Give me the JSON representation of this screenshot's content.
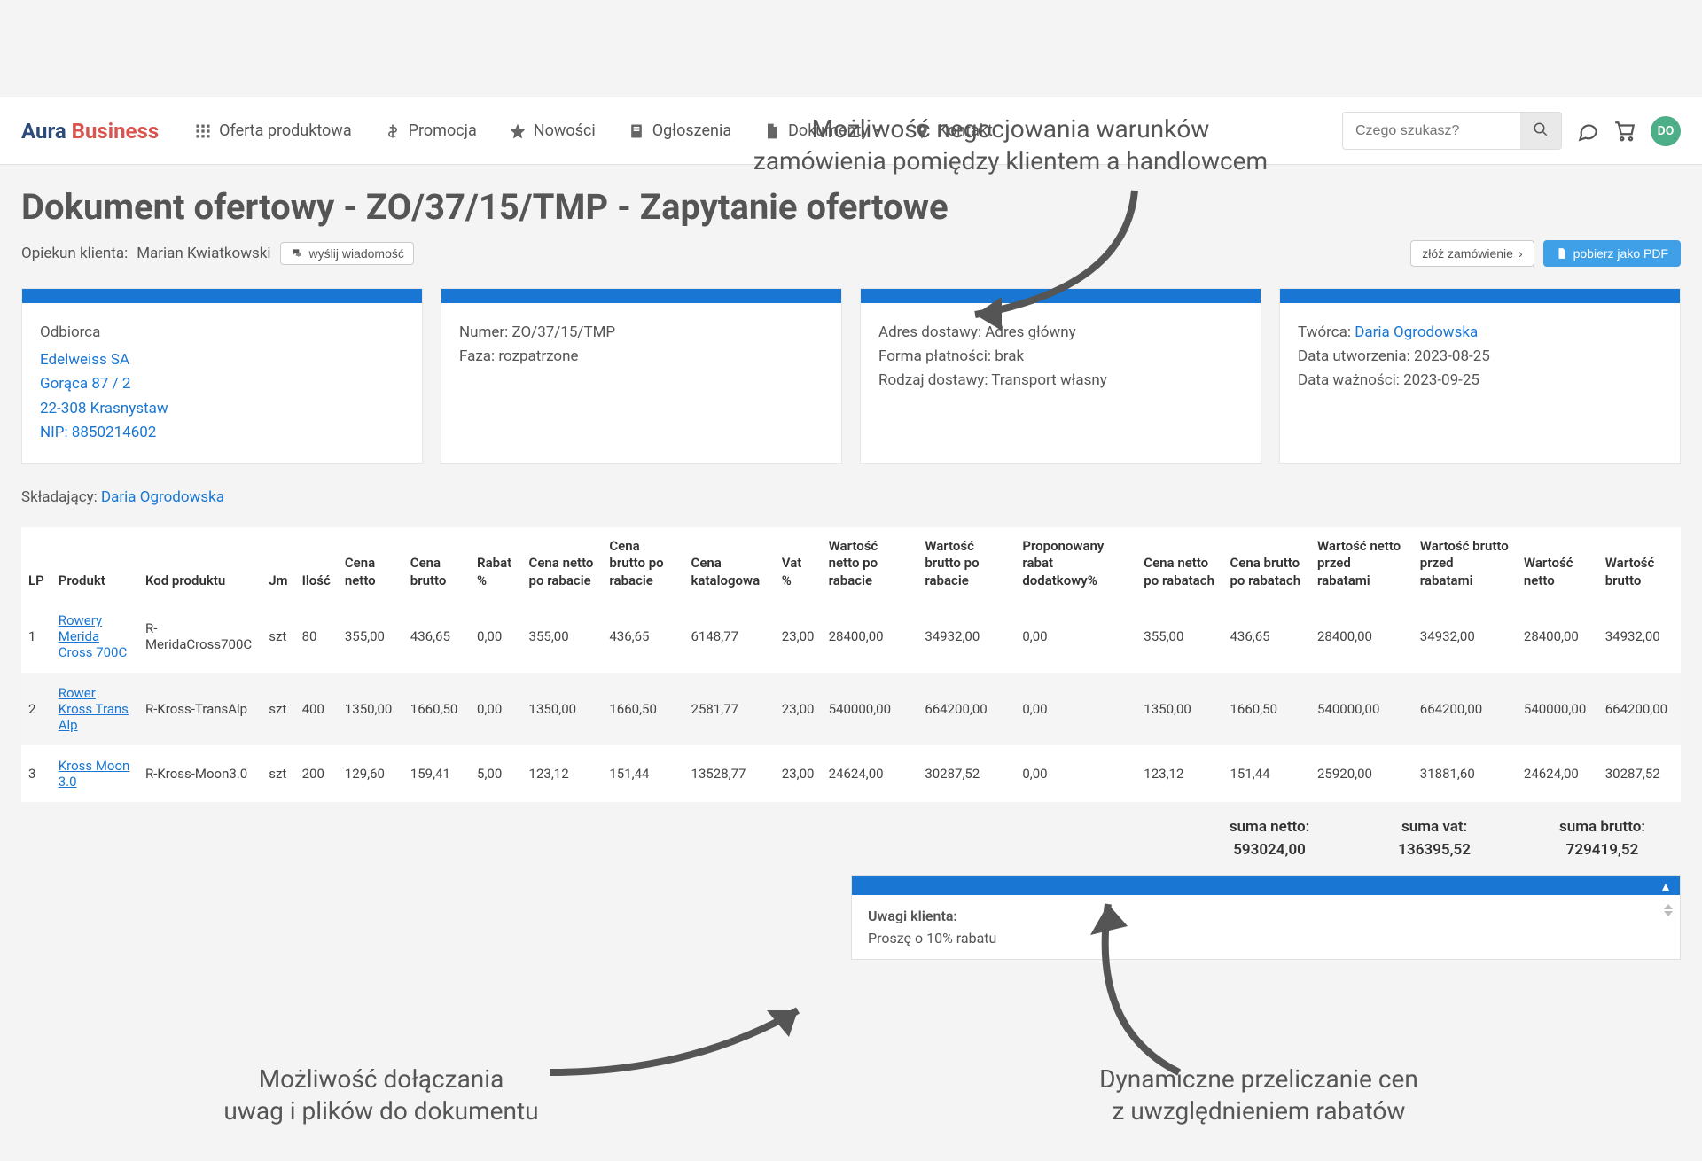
{
  "annotations": {
    "top": "Możliwość negocjowania warunków\nzamówienia pomiędzy klientem a handlowcem",
    "bottom_left": "Możliwość dołączania\nuwag i plików do dokumentu",
    "bottom_right": "Dynamiczne przeliczanie cen\nz uwzględnieniem rabatów"
  },
  "brand": {
    "part1": "Aura",
    "part2": "Business"
  },
  "nav": {
    "offer": "Oferta produktowa",
    "promo": "Promocja",
    "news": "Nowości",
    "ads": "Ogłoszenia",
    "docs": "Dokumenty",
    "contact": "Kontakt"
  },
  "search": {
    "placeholder": "Czego szukasz?"
  },
  "avatar_initials": "DO",
  "page_title": "Dokument ofertowy - ZO/37/15/TMP - Zapytanie ofertowe",
  "owner_label": "Opiekun klienta:",
  "owner_name": "Marian Kwiatkowski",
  "msg_btn": "wyślij wiadomość",
  "order_btn": "złóż zamówienie",
  "pdf_btn": "pobierz jako PDF",
  "cards": {
    "recipient": {
      "label": "Odbiorca",
      "name": "Edelweiss SA",
      "addr1": "Gorąca 87 / 2",
      "addr2": "22-308 Krasnystaw",
      "nip": "NIP: 8850214602"
    },
    "doc": {
      "number": "Numer: ZO/37/15/TMP",
      "phase": "Faza: rozpatrzone"
    },
    "delivery": {
      "addr": "Adres dostawy: Adres główny",
      "payment": "Forma płatności: brak",
      "type": "Rodzaj dostawy: Transport własny"
    },
    "meta": {
      "creator_label": "Twórca:",
      "creator": "Daria Ogrodowska",
      "created": "Data utworzenia: 2023-08-25",
      "valid": "Data ważności: 2023-09-25"
    }
  },
  "submitter_label": "Składający:",
  "submitter": "Daria Ogrodowska",
  "columns": {
    "lp": "LP",
    "product": "Produkt",
    "code": "Kod produktu",
    "jm": "Jm",
    "qty": "Ilość",
    "net": "Cena netto",
    "gross": "Cena brutto",
    "discount": "Rabat %",
    "net_after": "Cena netto po rabacie",
    "gross_after": "Cena brutto po rabacie",
    "catalog": "Cena katalogowa",
    "vat": "Vat %",
    "val_net_after": "Wartość netto po rabacie",
    "val_gross_after": "Wartość brutto po rabacie",
    "prop_discount": "Proponowany rabat dodatkowy%",
    "net_after_all": "Cena netto po rabatach",
    "gross_after_all": "Cena brutto po rabatach",
    "val_net_before": "Wartość netto przed rabatami",
    "val_gross_before": "Wartość brutto przed rabatami",
    "val_net": "Wartość netto",
    "val_gross": "Wartość brutto"
  },
  "rows": [
    {
      "lp": "1",
      "product": "Rowery Merida Cross 700C",
      "code": "R-MeridaCross700C",
      "jm": "szt",
      "qty": "80",
      "net": "355,00",
      "gross": "436,65",
      "discount": "0,00",
      "net_after": "355,00",
      "gross_after": "436,65",
      "catalog": "6148,77",
      "vat": "23,00",
      "val_net_after": "28400,00",
      "val_gross_after": "34932,00",
      "prop_discount": "0,00",
      "net_after_all": "355,00",
      "gross_after_all": "436,65",
      "val_net_before": "28400,00",
      "val_gross_before": "34932,00",
      "val_net": "28400,00",
      "val_gross": "34932,00"
    },
    {
      "lp": "2",
      "product": "Rower Kross Trans Alp",
      "code": "R-Kross-TransAlp",
      "jm": "szt",
      "qty": "400",
      "net": "1350,00",
      "gross": "1660,50",
      "discount": "0,00",
      "net_after": "1350,00",
      "gross_after": "1660,50",
      "catalog": "2581,77",
      "vat": "23,00",
      "val_net_after": "540000,00",
      "val_gross_after": "664200,00",
      "prop_discount": "0,00",
      "net_after_all": "1350,00",
      "gross_after_all": "1660,50",
      "val_net_before": "540000,00",
      "val_gross_before": "664200,00",
      "val_net": "540000,00",
      "val_gross": "664200,00"
    },
    {
      "lp": "3",
      "product": "Kross Moon 3.0",
      "code": "R-Kross-Moon3.0",
      "jm": "szt",
      "qty": "200",
      "net": "129,60",
      "gross": "159,41",
      "discount": "5,00",
      "net_after": "123,12",
      "gross_after": "151,44",
      "catalog": "13528,77",
      "vat": "23,00",
      "val_net_after": "24624,00",
      "val_gross_after": "30287,52",
      "prop_discount": "0,00",
      "net_after_all": "123,12",
      "gross_after_all": "151,44",
      "val_net_before": "25920,00",
      "val_gross_before": "31881,60",
      "val_net": "24624,00",
      "val_gross": "30287,52"
    }
  ],
  "totals": {
    "net_label": "suma netto:",
    "net": "593024,00",
    "vat_label": "suma vat:",
    "vat": "136395,52",
    "gross_label": "suma brutto:",
    "gross": "729419,52"
  },
  "notes": {
    "label": "Uwagi klienta:",
    "text": "Proszę o 10% rabatu"
  },
  "colors": {
    "primary": "#1976d2",
    "accent": "#3fa0e8",
    "brand_blue": "#2c4b7a",
    "brand_red": "#d9534f",
    "bg": "#f4f4f4",
    "arrow": "#555555"
  }
}
